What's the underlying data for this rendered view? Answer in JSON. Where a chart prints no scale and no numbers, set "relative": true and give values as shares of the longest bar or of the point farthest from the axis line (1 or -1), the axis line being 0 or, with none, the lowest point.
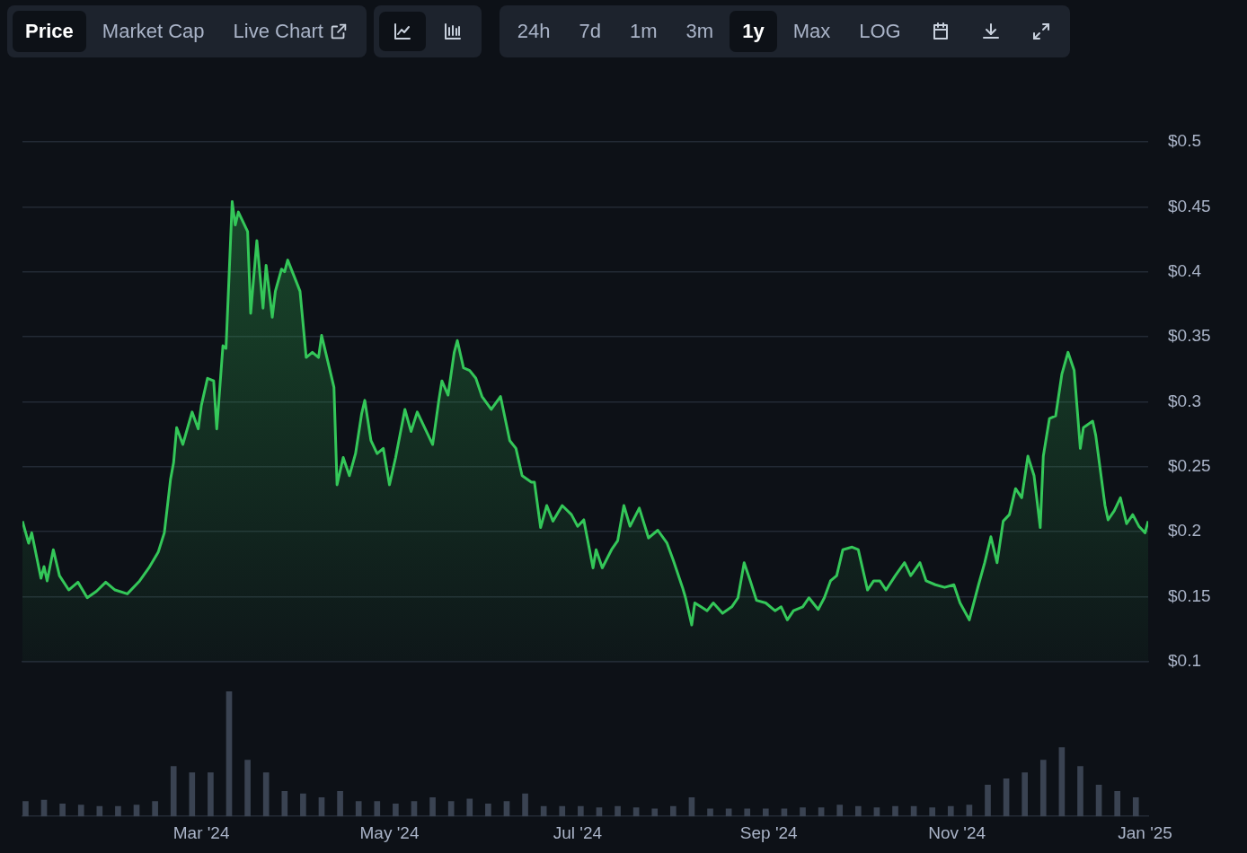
{
  "chart_data": [
    {
      "type": "area",
      "annotations": [
        "Price",
        "Market Cap",
        "Live Chart",
        "24h",
        "7d",
        "1m",
        "3m",
        "1y",
        "Max",
        "LOG"
      ],
      "x": [
        "2024-01-03",
        "2024-01-05",
        "2024-01-06",
        "2024-01-09",
        "2024-01-10",
        "2024-01-11",
        "2024-01-13",
        "2024-01-15",
        "2024-01-18",
        "2024-01-21",
        "2024-01-24",
        "2024-01-27",
        "2024-01-30",
        "2024-02-02",
        "2024-02-06",
        "2024-02-10",
        "2024-02-13",
        "2024-02-16",
        "2024-02-18",
        "2024-02-20",
        "2024-02-21",
        "2024-02-22",
        "2024-02-24",
        "2024-02-27",
        "2024-02-29",
        "2024-03-01",
        "2024-03-03",
        "2024-03-05",
        "2024-03-06",
        "2024-03-08",
        "2024-03-09",
        "2024-03-11",
        "2024-03-12",
        "2024-03-13",
        "2024-03-16",
        "2024-03-17",
        "2024-03-19",
        "2024-03-21",
        "2024-03-22",
        "2024-03-24",
        "2024-03-25",
        "2024-03-27",
        "2024-03-28",
        "2024-03-29",
        "2024-04-01",
        "2024-04-02",
        "2024-04-04",
        "2024-04-06",
        "2024-04-08",
        "2024-04-09",
        "2024-04-11",
        "2024-04-13",
        "2024-04-14",
        "2024-04-16",
        "2024-04-18",
        "2024-04-20",
        "2024-04-22",
        "2024-04-23",
        "2024-04-25",
        "2024-04-27",
        "2024-04-29",
        "2024-05-01",
        "2024-05-03",
        "2024-05-06",
        "2024-05-08",
        "2024-05-10",
        "2024-05-13",
        "2024-05-15",
        "2024-05-17",
        "2024-05-18",
        "2024-05-20",
        "2024-05-22",
        "2024-05-23",
        "2024-05-25",
        "2024-05-27",
        "2024-05-29",
        "2024-05-31",
        "2024-06-03",
        "2024-06-06",
        "2024-06-09",
        "2024-06-11",
        "2024-06-13",
        "2024-06-16",
        "2024-06-17",
        "2024-06-19",
        "2024-06-21",
        "2024-06-23",
        "2024-06-26",
        "2024-06-29",
        "2024-07-01",
        "2024-07-03",
        "2024-07-06",
        "2024-07-07",
        "2024-07-09",
        "2024-07-12",
        "2024-07-14",
        "2024-07-16",
        "2024-07-18",
        "2024-07-21",
        "2024-07-24",
        "2024-07-27",
        "2024-07-30",
        "2024-08-01",
        "2024-08-04",
        "2024-08-05",
        "2024-08-07",
        "2024-08-08",
        "2024-08-10",
        "2024-08-12",
        "2024-08-14",
        "2024-08-17",
        "2024-08-20",
        "2024-08-22",
        "2024-08-24",
        "2024-08-26",
        "2024-08-28",
        "2024-08-31",
        "2024-09-03",
        "2024-09-05",
        "2024-09-07",
        "2024-09-09",
        "2024-09-12",
        "2024-09-14",
        "2024-09-17",
        "2024-09-19",
        "2024-09-21",
        "2024-09-23",
        "2024-09-25",
        "2024-09-28",
        "2024-09-30",
        "2024-10-03",
        "2024-10-05",
        "2024-10-07",
        "2024-10-09",
        "2024-10-12",
        "2024-10-15",
        "2024-10-17",
        "2024-10-20",
        "2024-10-22",
        "2024-10-25",
        "2024-10-28",
        "2024-10-31",
        "2024-11-02",
        "2024-11-05",
        "2024-11-08",
        "2024-11-10",
        "2024-11-12",
        "2024-11-14",
        "2024-11-16",
        "2024-11-18",
        "2024-11-20",
        "2024-11-22",
        "2024-11-24",
        "2024-11-26",
        "2024-11-28",
        "2024-11-29",
        "2024-12-01",
        "2024-12-03",
        "2024-12-05",
        "2024-12-07",
        "2024-12-09",
        "2024-12-11",
        "2024-12-12",
        "2024-12-15",
        "2024-12-16",
        "2024-12-19",
        "2024-12-20",
        "2024-12-22",
        "2024-12-24",
        "2024-12-26",
        "2024-12-28",
        "2024-12-30",
        "2025-01-01",
        "2025-01-02"
      ],
      "series": [
        {
          "color": "#34c759",
          "values": [
            0.208,
            0.191,
            0.199,
            0.164,
            0.173,
            0.162,
            0.186,
            0.166,
            0.155,
            0.161,
            0.149,
            0.154,
            0.161,
            0.155,
            0.152,
            0.162,
            0.172,
            0.184,
            0.199,
            0.24,
            0.253,
            0.28,
            0.267,
            0.292,
            0.279,
            0.297,
            0.318,
            0.316,
            0.279,
            0.343,
            0.341,
            0.454,
            0.436,
            0.446,
            0.431,
            0.368,
            0.424,
            0.372,
            0.405,
            0.365,
            0.385,
            0.402,
            0.4,
            0.409,
            0.391,
            0.385,
            0.334,
            0.338,
            0.334,
            0.351,
            0.331,
            0.311,
            0.236,
            0.257,
            0.243,
            0.26,
            0.291,
            0.301,
            0.27,
            0.26,
            0.264,
            0.236,
            0.257,
            0.294,
            0.277,
            0.292,
            0.277,
            0.267,
            0.301,
            0.316,
            0.305,
            0.338,
            0.347,
            0.326,
            0.324,
            0.318,
            0.304,
            0.294,
            0.304,
            0.27,
            0.264,
            0.243,
            0.238,
            0.238,
            0.203,
            0.22,
            0.208,
            0.22,
            0.213,
            0.204,
            0.209,
            0.172,
            0.186,
            0.172,
            0.186,
            0.193,
            0.22,
            0.204,
            0.218,
            0.195,
            0.201,
            0.191,
            0.178,
            0.157,
            0.149,
            0.128,
            0.145,
            0.142,
            0.139,
            0.145,
            0.137,
            0.142,
            0.149,
            0.176,
            0.162,
            0.147,
            0.145,
            0.139,
            0.142,
            0.132,
            0.139,
            0.142,
            0.149,
            0.14,
            0.149,
            0.162,
            0.166,
            0.186,
            0.188,
            0.186,
            0.155,
            0.162,
            0.162,
            0.155,
            0.166,
            0.176,
            0.166,
            0.176,
            0.162,
            0.159,
            0.157,
            0.159,
            0.145,
            0.132,
            0.159,
            0.176,
            0.196,
            0.176,
            0.208,
            0.213,
            0.233,
            0.226,
            0.258,
            0.243,
            0.203,
            0.258,
            0.287,
            0.289,
            0.321,
            0.338,
            0.324,
            0.264,
            0.28,
            0.285,
            0.274,
            0.22,
            0.209,
            0.216,
            0.226,
            0.206,
            0.213,
            0.204,
            0.199,
            0.208
          ]
        }
      ],
      "xlim": [
        "2024-01-03",
        "2025-01-02"
      ],
      "xticks": [
        {
          "value": "2024-03-01",
          "label": null
        },
        {
          "value": "2024-05-01",
          "label": null
        },
        {
          "value": "2024-07-01",
          "label": null
        },
        {
          "value": "2024-09-01",
          "label": null
        },
        {
          "value": "2024-11-01",
          "label": null
        },
        {
          "value": "2025-01-01",
          "label": null
        }
      ],
      "ylim": [
        0.1,
        0.5
      ],
      "yticks": [
        {
          "value": 0.1,
          "label": "$0.1"
        },
        {
          "value": 0.15,
          "label": "$0.15"
        },
        {
          "value": 0.2,
          "label": "$0.2"
        },
        {
          "value": 0.25,
          "label": "$0.25"
        },
        {
          "value": 0.3,
          "label": "$0.3"
        },
        {
          "value": 0.35,
          "label": "$0.35"
        },
        {
          "value": 0.4,
          "label": "$0.4"
        },
        {
          "value": 0.45,
          "label": "$0.45"
        },
        {
          "value": 0.5,
          "label": "$0.5"
        }
      ],
      "grid": "y",
      "tick_labels": "y"
    },
    {
      "type": "bar",
      "relative": true,
      "x": [
        "2024-01-04",
        "2024-01-10",
        "2024-01-16",
        "2024-01-22",
        "2024-01-28",
        "2024-02-03",
        "2024-02-09",
        "2024-02-15",
        "2024-02-21",
        "2024-02-27",
        "2024-03-04",
        "2024-03-10",
        "2024-03-16",
        "2024-03-22",
        "2024-03-28",
        "2024-04-03",
        "2024-04-09",
        "2024-04-15",
        "2024-04-21",
        "2024-04-27",
        "2024-05-03",
        "2024-05-09",
        "2024-05-15",
        "2024-05-21",
        "2024-05-27",
        "2024-06-02",
        "2024-06-08",
        "2024-06-14",
        "2024-06-20",
        "2024-06-26",
        "2024-07-02",
        "2024-07-08",
        "2024-07-14",
        "2024-07-20",
        "2024-07-26",
        "2024-08-01",
        "2024-08-07",
        "2024-08-13",
        "2024-08-19",
        "2024-08-25",
        "2024-08-31",
        "2024-09-06",
        "2024-09-12",
        "2024-09-18",
        "2024-09-24",
        "2024-09-30",
        "2024-10-06",
        "2024-10-12",
        "2024-10-18",
        "2024-10-24",
        "2024-10-30",
        "2024-11-05",
        "2024-11-11",
        "2024-11-17",
        "2024-11-23",
        "2024-11-29",
        "2024-12-05",
        "2024-12-11",
        "2024-12-17",
        "2024-12-23",
        "2024-12-29"
      ],
      "series": [
        {
          "color": "#3a4352",
          "values": [
            0.12,
            0.13,
            0.1,
            0.09,
            0.08,
            0.08,
            0.09,
            0.12,
            0.4,
            0.35,
            0.35,
            1,
            0.45,
            0.35,
            0.2,
            0.18,
            0.15,
            0.2,
            0.12,
            0.12,
            0.1,
            0.12,
            0.15,
            0.12,
            0.14,
            0.1,
            0.12,
            0.18,
            0.08,
            0.08,
            0.08,
            0.07,
            0.08,
            0.07,
            0.06,
            0.08,
            0.15,
            0.06,
            0.06,
            0.06,
            0.06,
            0.06,
            0.07,
            0.07,
            0.09,
            0.08,
            0.07,
            0.08,
            0.08,
            0.07,
            0.08,
            0.09,
            0.25,
            0.3,
            0.35,
            0.45,
            0.55,
            0.4,
            0.25,
            0.2,
            0.15
          ]
        }
      ],
      "xlim": [
        "2024-01-03",
        "2025-01-02"
      ],
      "xticks": [
        {
          "value": "2024-03-01",
          "label": "Mar '24"
        },
        {
          "value": "2024-05-01",
          "label": "May '24"
        },
        {
          "value": "2024-07-01",
          "label": "Jul '24"
        },
        {
          "value": "2024-09-01",
          "label": "Sep '24"
        },
        {
          "value": "2024-11-01",
          "label": "Nov '24"
        },
        {
          "value": "2025-01-01",
          "label": "Jan '25"
        }
      ],
      "grid": false
    }
  ]
}
